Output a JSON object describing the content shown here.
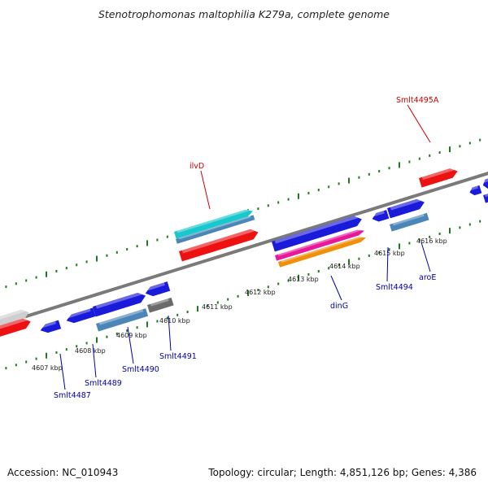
{
  "title": "Stenotrophomonas maltophilia K279a, complete genome",
  "footer": {
    "accession": "Accession: NC_010943",
    "summary": "Topology: circular; Length: 4,851,126 bp; Genes: 4,386"
  },
  "colors": {
    "backbone": "#7a7a7a",
    "tick": "#1e7a1e",
    "gene_red": "#ee1111",
    "gene_blue": "#1a1adb",
    "gene_steel": "#4a86b8",
    "gene_cyan": "#18c8cc",
    "gene_magenta": "#e8189a",
    "gene_orange": "#f0900a",
    "gene_grey": "#cfcfcf",
    "gene_darkgrey": "#6b6b6b",
    "label_red": "#cc0000",
    "label_blue": "#0000aa"
  },
  "kbp_labels": [
    "4607 kbp",
    "4608 kbp",
    "4609 kbp",
    "4610 kbp",
    "4611 kbp",
    "4612 kbp",
    "4613 kbp",
    "4614 kbp",
    "4615 kbp",
    "4616 kbp"
  ],
  "gene_labels": [
    "Smlt4495A",
    "ilvD",
    "dinG",
    "Smlt4494",
    "aroE",
    "Smlt4487",
    "Smlt4489",
    "Smlt4490",
    "Smlt4491"
  ]
}
